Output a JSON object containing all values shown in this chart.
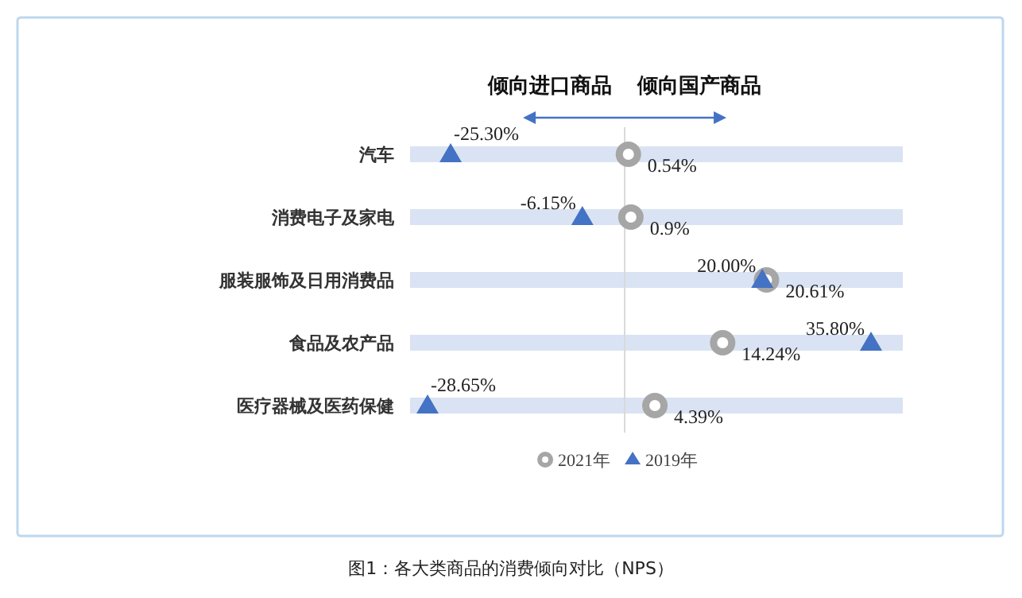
{
  "chart_data": {
    "type": "scatter",
    "orientation": "horizontal",
    "categories": [
      "汽车",
      "消费电子及家电",
      "服装服饰及日用消费品",
      "食品及农产品",
      "医疗器械及医药保健"
    ],
    "series": [
      {
        "name": "2021年",
        "color": "#a6a6a6",
        "marker": "circle",
        "values": [
          0.54,
          0.9,
          20.61,
          14.24,
          4.39
        ],
        "value_labels": [
          "0.54%",
          "0.9%",
          "20.61%",
          "14.24%",
          "4.39%"
        ]
      },
      {
        "name": "2019年",
        "color": "#4472c4",
        "marker": "triangle",
        "values": [
          -25.3,
          -6.15,
          20.0,
          35.8,
          -28.65
        ],
        "value_labels": [
          "-25.30%",
          "-6.15%",
          "20.00%",
          "35.80%",
          "-28.65%"
        ]
      }
    ],
    "ref_lines": [
      {
        "axis": "x",
        "value": 0,
        "color": "#d9d9d9"
      }
    ],
    "grid": "y",
    "legend": "bottom",
    "tick_labels": "y",
    "annotations": [
      "倾向进口商品",
      "倾向国产商品",
      "图1：各大类商品的消费倾向对比（NPS）"
    ]
  }
}
